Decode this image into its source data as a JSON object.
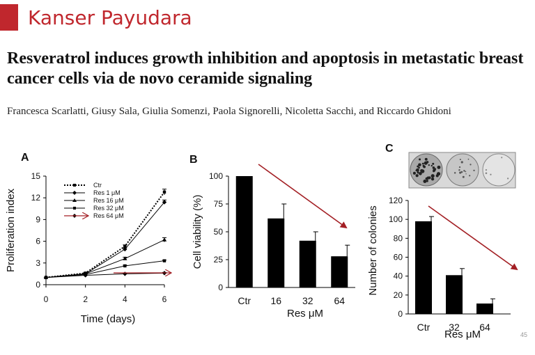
{
  "slide": {
    "title": "Kanser Payudara",
    "paper_title": "Resveratrol induces growth inhibition and apoptosis in metastatic breast cancer cells via de novo ceramide signaling",
    "authors": "Francesca Scarlatti, Giusy Sala, Giulia Somenzi, Paola Signorelli, Nicoletta Sacchi, and Riccardo Ghidoni",
    "page_number": "45",
    "colors": {
      "accent": "#c0272d",
      "bar": "#000000",
      "arrow": "#a31f24"
    }
  },
  "chart_data": [
    {
      "panel": "A",
      "type": "line",
      "xlabel": "Time (days)",
      "ylabel": "Proliferation index",
      "x": [
        0,
        2,
        4,
        6
      ],
      "xticks": [
        "0",
        "2",
        "4",
        "6"
      ],
      "yticks": [
        "0",
        "3",
        "6",
        "9",
        "12",
        "15"
      ],
      "xlim": [
        0,
        6
      ],
      "ylim": [
        0,
        15
      ],
      "series": [
        {
          "name": "Ctr",
          "values": [
            1,
            1.6,
            5.3,
            12.8
          ],
          "errors": [
            0,
            0.1,
            0.2,
            0.4
          ],
          "marker": "square",
          "dash": "dotted"
        },
        {
          "name": "Res 1 μM",
          "values": [
            1,
            1.5,
            4.9,
            11.4
          ],
          "errors": [
            0,
            0.1,
            0.2,
            0.3
          ],
          "marker": "diamond",
          "dash": "solid"
        },
        {
          "name": "Res 16 μM",
          "values": [
            1,
            1.5,
            3.6,
            6.2
          ],
          "errors": [
            0,
            0.1,
            0.2,
            0.3
          ],
          "marker": "triangle",
          "dash": "solid"
        },
        {
          "name": "Res 32 μM",
          "values": [
            1,
            1.4,
            2.6,
            3.3
          ],
          "errors": [
            0,
            0.1,
            0.1,
            0.1
          ],
          "marker": "square",
          "dash": "solid"
        },
        {
          "name": "Res 64 μM",
          "values": [
            1,
            1.3,
            1.5,
            1.6
          ],
          "errors": [
            0,
            0,
            0.1,
            0.1
          ],
          "marker": "diamond",
          "dash": "solid"
        }
      ],
      "legend": "top-left",
      "annotations": [
        "red arrow beside Res 64 μM legend entry",
        "red arrow along Res 64 μM curve"
      ]
    },
    {
      "panel": "B",
      "type": "bar",
      "ylabel": "Cell viability (%)",
      "xlabel": "Res μM",
      "categories": [
        "Ctr",
        "16",
        "32",
        "64"
      ],
      "values": [
        100,
        62,
        42,
        28
      ],
      "errors": [
        0,
        13,
        8,
        10
      ],
      "yticks": [
        "0",
        "25",
        "50",
        "75",
        "100"
      ],
      "ylim": [
        0,
        100
      ],
      "annotations": [
        "red downward arrow over bars"
      ]
    },
    {
      "panel": "C",
      "type": "bar",
      "ylabel": "Number of colonies",
      "xlabel": "Res μM",
      "categories": [
        "Ctr",
        "32",
        "64"
      ],
      "values": [
        98,
        41,
        11
      ],
      "errors": [
        5,
        7,
        5
      ],
      "yticks": [
        "0",
        "20",
        "40",
        "60",
        "80",
        "100",
        "120"
      ],
      "ylim": [
        0,
        120
      ],
      "annotations": [
        "colony plate photo above chart",
        "red downward arrow"
      ]
    }
  ]
}
